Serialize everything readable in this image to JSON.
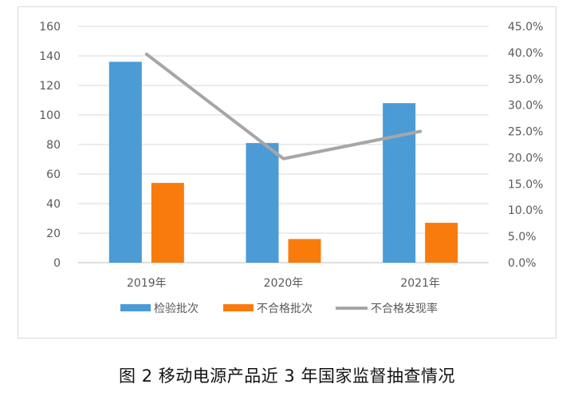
{
  "chart_data": {
    "type": "bar",
    "categories": [
      "2019年",
      "2020年",
      "2021年"
    ],
    "series": [
      {
        "name": "检验批次",
        "kind": "bar",
        "axis": "left",
        "color": "#4a9bd6",
        "values": [
          136,
          81,
          108
        ]
      },
      {
        "name": "不合格批次",
        "kind": "bar",
        "axis": "left",
        "color": "#f97b0c",
        "values": [
          54,
          16,
          27
        ]
      },
      {
        "name": "不合格发现率",
        "kind": "line",
        "axis": "right",
        "color": "#a6a6a6",
        "values": [
          0.397,
          0.198,
          0.25
        ]
      }
    ],
    "y_left": {
      "min": 0,
      "max": 160,
      "step": 20,
      "ticks": [
        "0",
        "20",
        "40",
        "60",
        "80",
        "100",
        "120",
        "140",
        "160"
      ]
    },
    "y_right": {
      "min": 0,
      "max": 0.45,
      "step": 0.05,
      "ticks": [
        "0.0%",
        "5.0%",
        "10.0%",
        "15.0%",
        "20.0%",
        "25.0%",
        "30.0%",
        "35.0%",
        "40.0%",
        "45.0%"
      ]
    },
    "grid": true,
    "legend_position": "bottom"
  },
  "caption": "图 2  移动电源产品近 3 年国家监督抽查情况"
}
